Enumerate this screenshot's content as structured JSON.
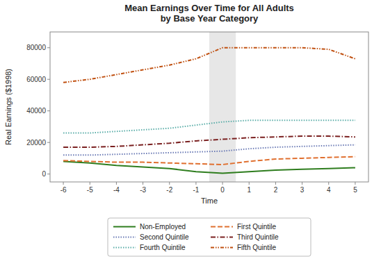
{
  "chart_data": {
    "type": "line",
    "title": "Mean Earnings Over Time for All Adults\nby Base Year Category",
    "x_label": "Time",
    "y_label": "Real Earnings ($1998)",
    "x": [
      -6,
      -5,
      -4,
      -3,
      -2,
      -1,
      0,
      1,
      2,
      3,
      4,
      5
    ],
    "xlim": [
      -6.5,
      5.5
    ],
    "xticks": [
      -6,
      -5,
      -4,
      -3,
      -2,
      -1,
      0,
      1,
      2,
      3,
      4,
      5
    ],
    "ylim": [
      -5000,
      90000
    ],
    "yticks": [
      0,
      20000,
      40000,
      60000,
      80000
    ],
    "highlight_x": [
      -0.5,
      0.5
    ],
    "grid": false,
    "legend": "bottom",
    "series": [
      {
        "name": "Non-Employed",
        "color": "#2e7d1e",
        "line_style": "solid",
        "values": [
          8000,
          7000,
          5500,
          4500,
          3500,
          1500,
          500,
          1500,
          2500,
          3000,
          3500,
          4000
        ]
      },
      {
        "name": "First Quintile",
        "color": "#e07030",
        "line_style": "dashed",
        "values": [
          8500,
          8000,
          7500,
          7500,
          7000,
          6500,
          6000,
          8000,
          9500,
          10000,
          10500,
          11000
        ]
      },
      {
        "name": "Second Quintile",
        "color": "#6a7ab5",
        "line_style": "dotted",
        "values": [
          12000,
          12000,
          12500,
          13000,
          13500,
          14000,
          14500,
          16000,
          17000,
          17500,
          18000,
          18500
        ]
      },
      {
        "name": "Third Quintile",
        "color": "#7a2020",
        "line_style": "dashdot",
        "values": [
          17000,
          17000,
          17500,
          18500,
          19500,
          21000,
          22000,
          23000,
          23500,
          24000,
          24000,
          23500
        ]
      },
      {
        "name": "Fourth Quintile",
        "color": "#5aada8",
        "line_style": "dotted",
        "values": [
          26000,
          26000,
          27000,
          28000,
          29000,
          31000,
          33000,
          34000,
          34000,
          34000,
          34000,
          34000
        ]
      },
      {
        "name": "Fifth Quintile",
        "color": "#c05010",
        "line_style": "dashdotdot",
        "values": [
          58000,
          60000,
          63000,
          66000,
          69000,
          73000,
          80000,
          80000,
          80000,
          80000,
          79000,
          73000
        ]
      }
    ]
  }
}
